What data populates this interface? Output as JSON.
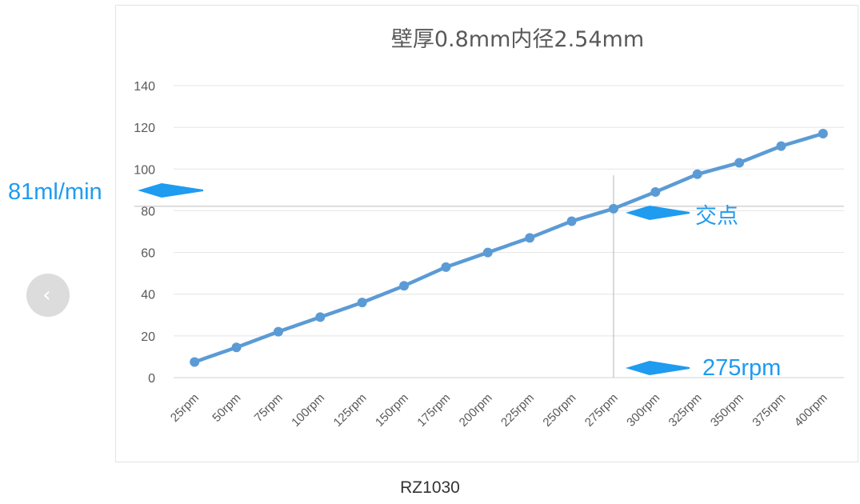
{
  "chart_data": {
    "type": "line",
    "title": "壁厚0.8mm内径2.54mm",
    "xlabel": "",
    "ylabel": "",
    "categories": [
      "25rpm",
      "50rpm",
      "75rpm",
      "100rpm",
      "125rpm",
      "150rpm",
      "175rpm",
      "200rpm",
      "225rpm",
      "250rpm",
      "275rpm",
      "300rpm",
      "325rpm",
      "350rpm",
      "375rpm",
      "400rpm"
    ],
    "series": [
      {
        "values": [
          7.5,
          14.5,
          22,
          29,
          36,
          44,
          53,
          60,
          67,
          75,
          81,
          89,
          97.5,
          103,
          111,
          117
        ]
      }
    ],
    "ylim": [
      0,
      140
    ],
    "yticks": [
      0,
      20,
      40,
      60,
      80,
      100,
      120,
      140
    ],
    "grid": true,
    "legend": "none",
    "line_color": "#5b9bd5",
    "annotations": {
      "flow_label": "81ml/min",
      "intersection_label": "交点",
      "rpm_label": "275rpm",
      "annotation_color": "#1f9bf0",
      "marker_value": 81,
      "marker_category": "275rpm"
    }
  },
  "caption": "RZ1030",
  "nav": {
    "prev_icon": "‹"
  }
}
